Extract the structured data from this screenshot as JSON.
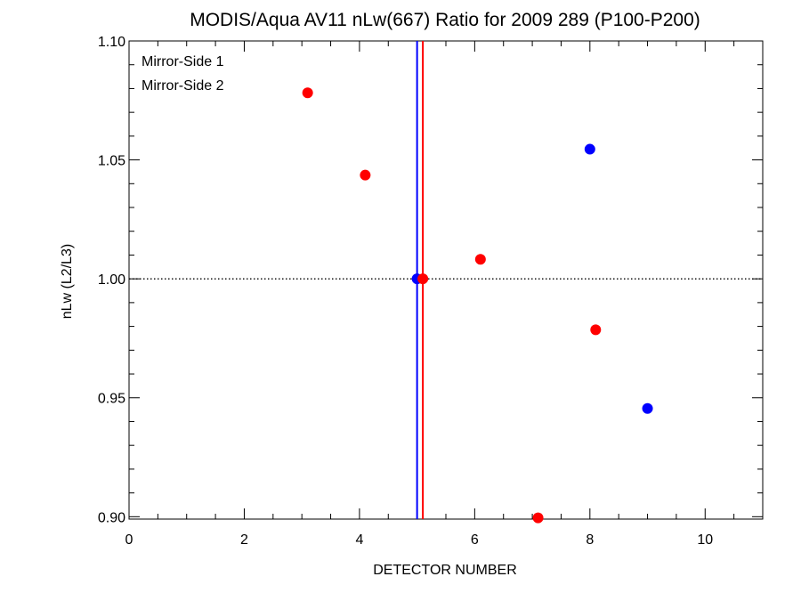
{
  "chart_data": {
    "type": "scatter",
    "title": "MODIS/Aqua AV11 nLw(667) Ratio for 2009 289 (P100-P200)",
    "xlabel": "DETECTOR NUMBER",
    "ylabel": "nLw (L2/L3)",
    "xlim": [
      0,
      11
    ],
    "ylim": [
      0.899,
      1.1
    ],
    "x_ticks": [
      0,
      2,
      4,
      6,
      8,
      10
    ],
    "x_tick_labels": [
      "0",
      "2",
      "4",
      "6",
      "8",
      "10"
    ],
    "y_ticks": [
      0.9,
      0.95,
      1.0,
      1.05,
      1.1
    ],
    "y_tick_labels": [
      "0.90",
      "0.95",
      "1.00",
      "1.05",
      "1.10"
    ],
    "reference_line": {
      "y": 1.0,
      "style": "dotted"
    },
    "legend": {
      "position": "top-left"
    },
    "series": [
      {
        "name": "Mirror-Side 1",
        "color": "#0000ff",
        "vline_x": 5.0,
        "points": [
          {
            "x": 5.0,
            "y": 1.0
          },
          {
            "x": 8.0,
            "y": 1.0545
          },
          {
            "x": 9.0,
            "y": 0.9455
          }
        ]
      },
      {
        "name": "Mirror-Side 2",
        "color": "#ff0000",
        "vline_x": 5.1,
        "points": [
          {
            "x": 3.1,
            "y": 1.0782
          },
          {
            "x": 4.1,
            "y": 1.0436
          },
          {
            "x": 5.1,
            "y": 1.0
          },
          {
            "x": 6.1,
            "y": 1.0082
          },
          {
            "x": 7.1,
            "y": 0.8995
          },
          {
            "x": 8.1,
            "y": 0.9786
          }
        ]
      }
    ]
  }
}
